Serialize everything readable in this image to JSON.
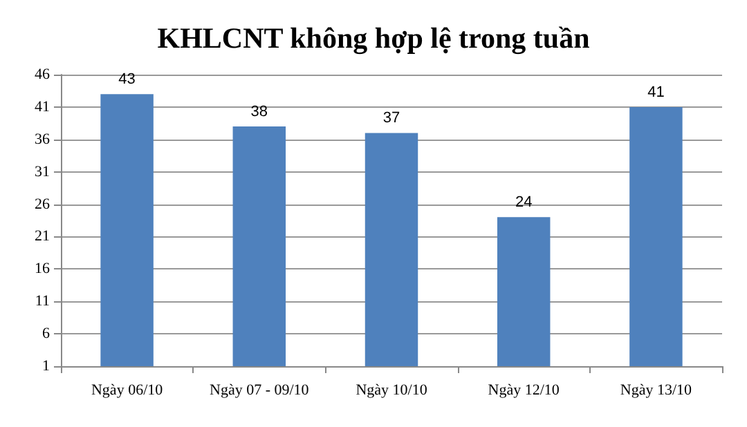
{
  "chart_data": {
    "type": "bar",
    "title": "KHLCNT không hợp lệ trong tuần",
    "categories": [
      "Ngày 06/10",
      "Ngày 07 - 09/10",
      "Ngày 10/10",
      "Ngày 12/10",
      "Ngày 13/10"
    ],
    "values": [
      43,
      38,
      37,
      24,
      41
    ],
    "color": "#4f81bd",
    "ylim": [
      1,
      46
    ],
    "yticks": [
      1,
      6,
      11,
      16,
      21,
      26,
      31,
      36,
      41,
      46
    ],
    "grid": "y",
    "data_labels": true
  }
}
